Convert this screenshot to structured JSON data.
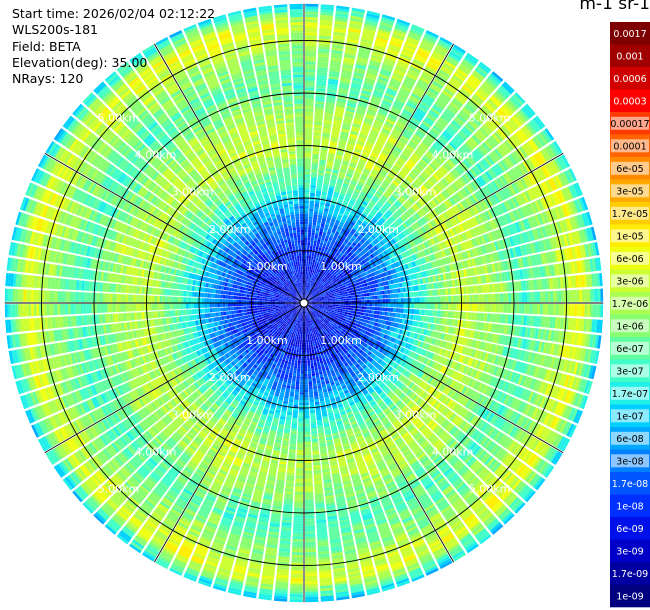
{
  "info": {
    "start_time": "Start time: 2026/02/04 02:12:22",
    "instrument": "WLS200s-181",
    "field": "Field: BETA",
    "elevation": "Elevation(deg): 35.00",
    "nrays": "NRays: 120"
  },
  "units_label": "m-1 sr-1",
  "chart_data": {
    "type": "heatmap",
    "title": "",
    "projection": "polar-ppi",
    "range_rings_km": [
      1,
      2,
      3,
      4,
      5
    ],
    "range_ring_labels": [
      "1.00km",
      "2.00km",
      "3.00km",
      "4.00km",
      "5.00km"
    ],
    "max_range_km": 5.7,
    "n_rays": 120,
    "range_gate_km": 0.05,
    "colorbar_ticks": [
      "0.0017",
      "0.001",
      "0.0006",
      "0.0003",
      "0.00017",
      "0.0001",
      "6e-05",
      "3e-05",
      "1.7e-05",
      "1e-05",
      "6e-06",
      "3e-06",
      "1.7e-06",
      "1e-06",
      "6e-07",
      "3e-07",
      "1.7e-07",
      "1e-07",
      "6e-08",
      "3e-08",
      "1.7e-08",
      "1e-08",
      "6e-09",
      "3e-09",
      "1.7e-09",
      "1e-09"
    ],
    "colorbar_colors": [
      "#7f0000",
      "#a00000",
      "#d00000",
      "#ff0000",
      "#ff3a00",
      "#ff6400",
      "#ff8a00",
      "#ffaa00",
      "#ffcc00",
      "#ffee00",
      "#eeff10",
      "#ccff30",
      "#aaff50",
      "#88ff70",
      "#60ffa0",
      "#40ffc8",
      "#20f0e8",
      "#00d0ff",
      "#00a8ff",
      "#0080ff",
      "#0055ff",
      "#0030ff",
      "#0010e8",
      "#0000c8",
      "#0000a0",
      "#000080"
    ],
    "profile_by_range_km": [
      {
        "range_km": 0.0,
        "log_beta": -8.2
      },
      {
        "range_km": 1.0,
        "log_beta": -8.0
      },
      {
        "range_km": 1.6,
        "log_beta": -7.5
      },
      {
        "range_km": 2.4,
        "log_beta": -6.3
      },
      {
        "range_km": 3.0,
        "log_beta": -5.6
      },
      {
        "range_km": 3.6,
        "log_beta": -5.8
      },
      {
        "range_km": 4.2,
        "log_beta": -6.4
      },
      {
        "range_km": 4.8,
        "log_beta": -5.9
      },
      {
        "range_km": 5.3,
        "log_beta": -5.3
      },
      {
        "range_km": 5.7,
        "log_beta": -7.0
      }
    ]
  }
}
